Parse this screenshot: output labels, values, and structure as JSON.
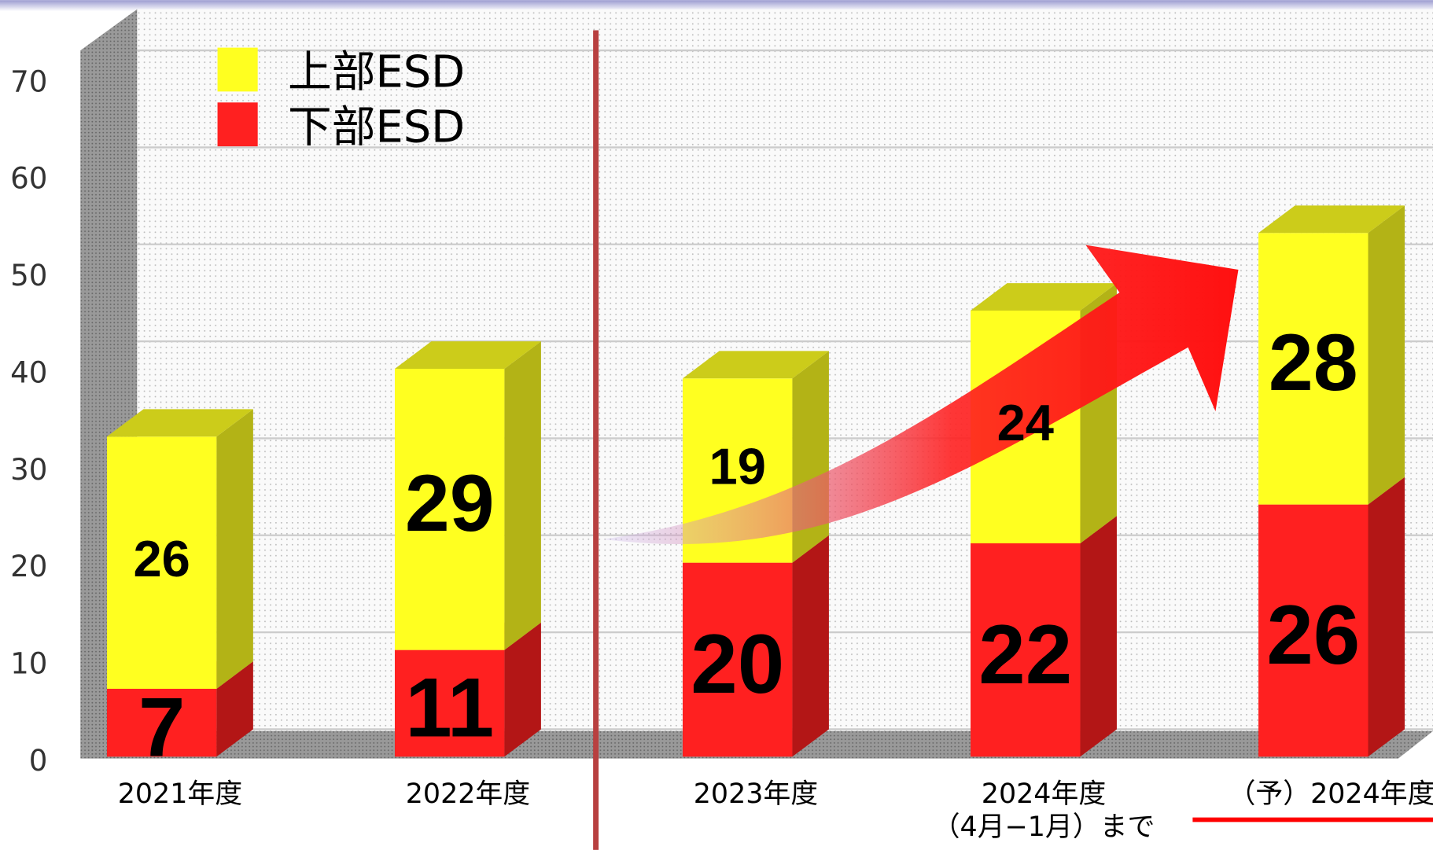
{
  "chart_data": {
    "type": "stacked-bar-3d",
    "categories": [
      "2021年度",
      "2022年度",
      "2023年度",
      "2024年度\n（4月−1月）まで",
      "（予）2024年度"
    ],
    "series": [
      {
        "name": "下部ESD",
        "color": "#ff2020",
        "values": [
          7,
          11,
          20,
          22,
          26
        ]
      },
      {
        "name": "上部ESD",
        "color": "#ffff20",
        "values": [
          26,
          29,
          19,
          24,
          28
        ]
      }
    ],
    "ylim": [
      0,
      70
    ],
    "yticks": [
      0,
      10,
      20,
      30,
      40,
      50,
      60,
      70
    ],
    "grid": true,
    "legend": "top-left"
  }
}
